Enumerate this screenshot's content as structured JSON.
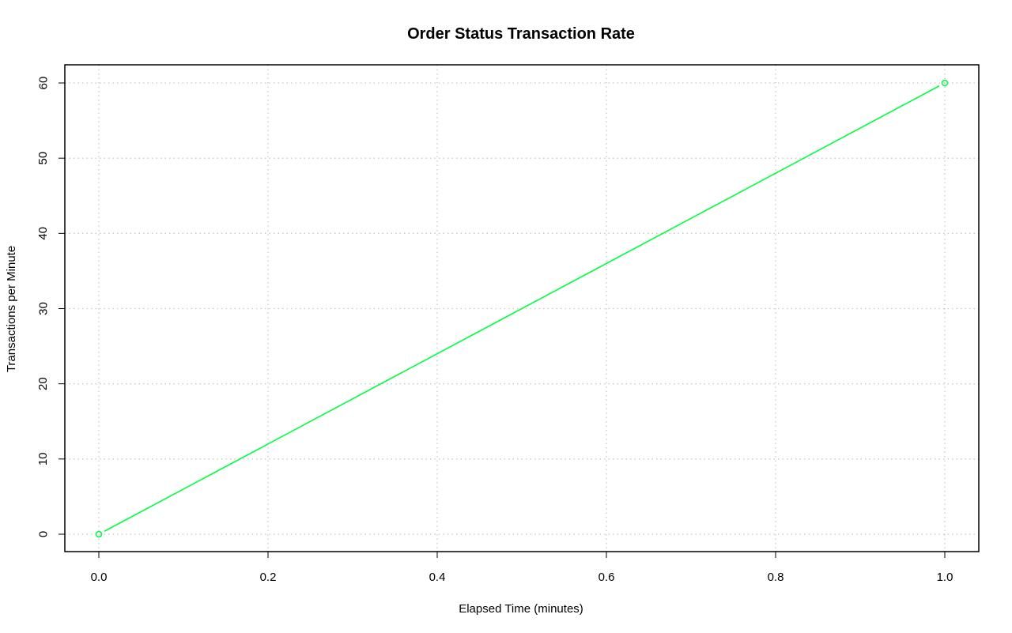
{
  "chart_data": {
    "type": "line",
    "title": "Order Status Transaction Rate",
    "xlabel": "Elapsed Time (minutes)",
    "ylabel": "Transactions per Minute",
    "xlim": [
      0.0,
      1.0
    ],
    "ylim": [
      0,
      60
    ],
    "x_ticks": [
      "0.0",
      "0.2",
      "0.4",
      "0.6",
      "0.8",
      "1.0"
    ],
    "y_ticks": [
      "0",
      "10",
      "20",
      "30",
      "40",
      "50",
      "60"
    ],
    "grid": true,
    "series": [
      {
        "x": [
          0.0,
          1.0
        ],
        "values": [
          0,
          60
        ],
        "color": "#00ff40",
        "marker": "open-circle"
      }
    ]
  }
}
